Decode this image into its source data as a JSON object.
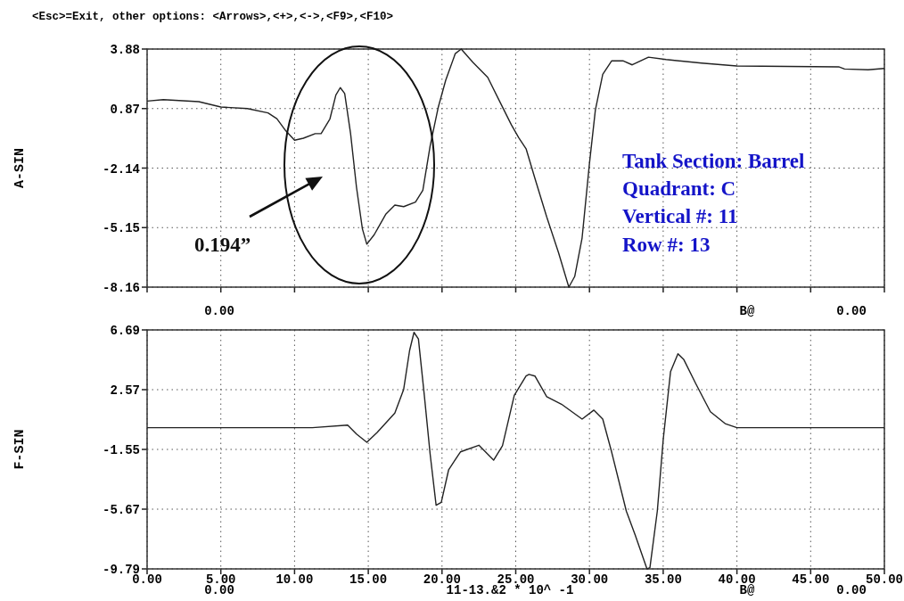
{
  "chart_data": [
    {
      "type": "line",
      "title": "<Esc>=Exit, other options: <Arrows>,<+>,<->,<F9>,<F10>",
      "ylabel": "A-SIN",
      "x": [
        0,
        1.1,
        3.5,
        5.0,
        6.8,
        8.2,
        8.8,
        9.4,
        10.0,
        10.6,
        11.4,
        11.8,
        12.4,
        12.8,
        13.1,
        13.4,
        13.8,
        14.2,
        14.6,
        14.9,
        15.4,
        16.2,
        16.8,
        17.4,
        18.2,
        18.7,
        19.2,
        19.75,
        20.25,
        20.9,
        21.3,
        22.1,
        23.1,
        23.9,
        24.7,
        25.2,
        25.7,
        26.3,
        27.1,
        27.9,
        28.6,
        29.0,
        29.5,
        30.0,
        30.4,
        30.9,
        31.5,
        32.3,
        32.9,
        34.0,
        35.2,
        37.6,
        40.0,
        46.9,
        47.3,
        48.9,
        50
      ],
      "series": [
        {
          "color": "#222222",
          "values": [
            1.25,
            1.32,
            1.22,
            0.95,
            0.87,
            0.65,
            0.36,
            -0.25,
            -0.73,
            -0.63,
            -0.4,
            -0.4,
            0.35,
            1.55,
            1.93,
            1.63,
            -0.4,
            -3.11,
            -5.21,
            -5.99,
            -5.51,
            -4.46,
            -4.01,
            -4.09,
            -3.86,
            -3.26,
            -1.0,
            0.95,
            2.3,
            3.65,
            3.88,
            3.2,
            2.45,
            1.25,
            0.05,
            -0.6,
            -1.16,
            -2.66,
            -4.61,
            -6.41,
            -8.16,
            -7.62,
            -5.67,
            -1.9,
            0.8,
            2.6,
            3.28,
            3.28,
            3.08,
            3.47,
            3.35,
            3.17,
            3.02,
            2.98,
            2.87,
            2.83,
            2.9
          ]
        }
      ],
      "xlim": [
        0,
        50
      ],
      "xticks": [
        0,
        5,
        10,
        15,
        20,
        25,
        30,
        35,
        40,
        45,
        50
      ],
      "ylim": [
        -8.16,
        3.88
      ],
      "yticks": [
        3.88,
        0.87,
        -2.14,
        -5.15,
        -8.16
      ],
      "grid": true,
      "tick_labels": "y",
      "line_style": "solid",
      "annotations": [
        "0.00",
        "B@",
        "0.00",
        "0.194”",
        "Tank Section: Barrel",
        "Quadrant: C",
        "Vertical #: 11",
        "Row #: 13"
      ]
    },
    {
      "type": "line",
      "ylabel": "F-SIN",
      "x": [
        0,
        11.2,
        13.6,
        14.2,
        14.9,
        15.6,
        16.8,
        17.4,
        17.8,
        18.1,
        18.4,
        18.8,
        19.2,
        19.6,
        19.95,
        20.45,
        21.25,
        22.5,
        23.5,
        24.1,
        24.9,
        25.7,
        25.9,
        26.3,
        27.1,
        28.1,
        29.5,
        30.3,
        30.9,
        31.5,
        32.5,
        33.1,
        33.9,
        34.1,
        34.6,
        35.0,
        35.5,
        36.0,
        36.4,
        37.2,
        38.2,
        39.2,
        40.0,
        50
      ],
      "series": [
        {
          "color": "#222222",
          "values": [
            -0.05,
            -0.05,
            0.13,
            -0.49,
            -1.06,
            -0.38,
            0.95,
            2.59,
            5.26,
            6.52,
            6.07,
            2.18,
            -1.92,
            -5.4,
            -5.2,
            -2.95,
            -1.72,
            -1.26,
            -2.29,
            -1.3,
            2.18,
            3.51,
            3.62,
            3.51,
            2.08,
            1.57,
            0.54,
            1.16,
            0.54,
            -1.72,
            -5.81,
            -7.45,
            -9.79,
            -9.71,
            -5.81,
            -0.89,
            3.82,
            5.05,
            4.64,
            3.0,
            1.05,
            0.23,
            -0.05,
            -0.05
          ]
        }
      ],
      "xlim": [
        0,
        50
      ],
      "xticks": [
        {
          "value": 0,
          "label": "0.00"
        },
        {
          "value": 5,
          "label": "5.00"
        },
        {
          "value": 10,
          "label": "10.00"
        },
        {
          "value": 15,
          "label": "15.00"
        },
        {
          "value": 20,
          "label": "20.00"
        },
        {
          "value": 25,
          "label": "25.00"
        },
        {
          "value": 30,
          "label": "30.00"
        },
        {
          "value": 35,
          "label": "35.00"
        },
        {
          "value": 40,
          "label": "40.00"
        },
        {
          "value": 45,
          "label": "45.00"
        },
        {
          "value": 50,
          "label": "50.00"
        }
      ],
      "ylim": [
        -9.79,
        6.69
      ],
      "yticks": [
        6.69,
        2.57,
        -1.55,
        -5.67,
        -9.79
      ],
      "grid": true,
      "line_style": "solid",
      "annotations": [
        "0.00",
        "11-13.&2 * 10^ -1",
        "B@",
        "0.00"
      ]
    }
  ]
}
